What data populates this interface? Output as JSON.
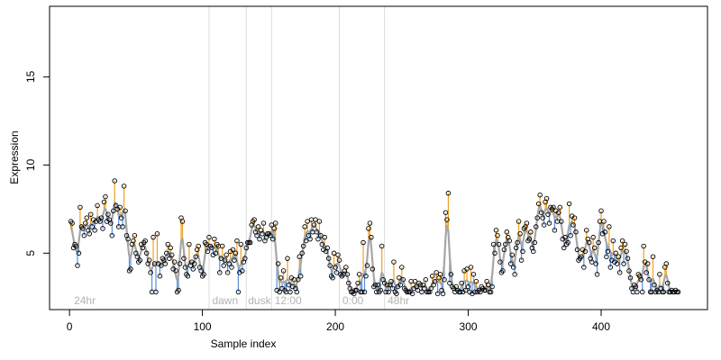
{
  "chart_data": {
    "type": "scatter",
    "title": "",
    "xlabel": "Sample index",
    "ylabel": "Expression",
    "xlim": [
      -15,
      480
    ],
    "ylim": [
      1.8,
      19
    ],
    "xticks": [
      0,
      100,
      200,
      300,
      400
    ],
    "yticks": [
      5,
      10,
      15
    ],
    "grid": false,
    "vlines": [
      105,
      133,
      152,
      203,
      237
    ],
    "region_labels": [
      {
        "text": "24hr",
        "x": 2
      },
      {
        "text": "dawn",
        "x": 106
      },
      {
        "text": "dusk",
        "x": 133
      },
      {
        "text": "12:00",
        "x": 153
      },
      {
        "text": "0:00",
        "x": 204
      },
      {
        "text": "48hr",
        "x": 238
      }
    ],
    "series": [
      {
        "kind": "observed-points",
        "x_start": 1,
        "values": [
          6.8,
          6.7,
          5.3,
          5.5,
          5.4,
          4.3,
          5.0,
          7.6,
          6.5,
          6.4,
          6.0,
          6.7,
          7.0,
          6.3,
          6.1,
          7.2,
          6.5,
          6.9,
          6.3,
          6.8,
          7.7,
          6.9,
          6.8,
          7.0,
          6.4,
          7.9,
          8.2,
          6.8,
          7.2,
          6.9,
          6.7,
          6.0,
          7.4,
          9.1,
          7.7,
          7.5,
          6.5,
          7.6,
          7.0,
          6.5,
          8.8,
          7.4,
          6.0,
          5.8,
          4.0,
          4.1,
          5.5,
          5.7,
          6.0,
          5.0,
          4.8,
          4.5,
          4.6,
          5.5,
          5.3,
          5.6,
          5.7,
          5.0,
          4.4,
          4.6,
          3.9,
          2.8,
          5.9,
          4.4,
          2.8,
          6.1,
          4.4,
          3.7,
          4.3,
          4.7,
          4.6,
          4.4,
          5.0,
          5.5,
          4.7,
          5.3,
          4.9,
          4.1,
          4.5,
          4.0,
          2.8,
          2.9,
          4.4,
          7.0,
          6.8,
          4.7,
          4.2,
          3.8,
          3.7,
          5.5,
          4.3,
          4.5,
          4.1,
          4.4,
          4.8,
          5.2,
          5.4,
          4.2,
          4.0,
          3.7,
          3.8,
          5.6,
          5.5,
          5.1,
          5.9,
          5.4,
          5.3,
          4.9,
          5.8,
          5.0,
          5.5,
          5.4,
          3.9,
          4.7,
          5.4,
          4.3,
          4.6,
          4.9,
          3.9,
          4.4,
          5.1,
          4.2,
          5.2,
          4.6,
          5.0,
          5.7,
          2.8,
          3.9,
          5.5,
          4.0,
          4.5,
          4.7,
          5.3,
          5.6,
          5.6,
          5.6,
          6.6,
          6.8,
          6.9,
          6.2,
          6.0,
          6.5,
          5.8,
          6.3,
          6.1,
          6.7,
          5.7,
          5.9,
          6.1,
          6.1,
          6.0,
          6.6,
          5.8,
          6.4,
          6.7,
          2.9,
          4.4,
          2.8,
          3.6,
          3.0,
          4.0,
          2.9,
          2.8,
          4.7,
          3.2,
          2.8,
          3.6,
          3.1,
          3.5,
          3.0,
          2.8,
          3.5,
          4.8,
          3.7,
          5.0,
          5.4,
          6.5,
          5.7,
          6.8,
          6.0,
          5.8,
          6.9,
          6.2,
          6.6,
          6.9,
          6.2,
          5.8,
          6.8,
          6.0,
          5.5,
          5.2,
          5.9,
          5.1,
          5.3,
          4.7,
          4.3,
          3.7,
          3.6,
          5.0,
          4.2,
          3.9,
          4.9,
          4.6,
          3.8,
          3.7,
          3.8,
          4.0,
          4.2,
          3.8,
          3.3,
          3.0,
          2.8,
          2.8,
          2.7,
          2.9,
          2.9,
          3.3,
          3.8,
          2.8,
          2.8,
          5.6,
          2.8,
          3.7,
          4.3,
          6.4,
          6.7,
          5.9,
          4.1,
          3.1,
          3.2,
          2.8,
          3.2,
          2.8,
          2.9,
          5.4,
          3.5,
          3.3,
          2.8,
          3.2,
          2.8,
          3.2,
          3.4,
          3.0,
          4.5,
          2.8,
          2.7,
          3.1,
          3.6,
          3.2,
          4.2,
          3.5,
          3.0,
          2.9,
          2.8,
          2.8,
          2.8,
          3.4,
          2.7,
          3.0,
          3.4,
          3.1,
          2.9,
          3.3,
          3.2,
          2.8,
          3.2,
          3.0,
          3.5,
          2.8,
          2.8,
          2.8,
          3.0,
          3.7,
          3.2,
          3.4,
          3.9,
          2.7,
          3.6,
          3.8,
          2.9,
          2.7,
          3.5,
          7.3,
          6.9,
          8.4,
          3.3,
          3.8,
          3.1,
          3.0,
          2.8,
          3.1,
          2.9,
          2.8,
          2.8,
          3.3,
          2.8,
          4.0,
          2.9,
          4.1,
          3.1,
          2.8,
          4.2,
          2.7,
          3.8,
          2.8,
          3.4,
          2.8,
          2.9,
          2.8,
          3.1,
          3.0,
          2.9,
          2.9,
          3.4,
          3.2,
          2.8,
          2.8,
          3.1,
          5.5,
          5.0,
          6.3,
          6.0,
          5.5,
          4.5,
          3.9,
          4.0,
          5.2,
          5.5,
          6.2,
          5.9,
          5.7,
          4.4,
          4.9,
          4.2,
          3.8,
          5.3,
          5.6,
          6.8,
          6.1,
          4.6,
          5.1,
          6.4,
          6.5,
          6.7,
          5.7,
          5.8,
          6.2,
          5.3,
          5.1,
          5.6,
          6.5,
          7.0,
          7.8,
          8.3,
          7.3,
          7.0,
          6.6,
          7.9,
          8.1,
          7.2,
          6.7,
          7.6,
          7.5,
          7.6,
          6.3,
          7.4,
          6.8,
          7.3,
          7.6,
          6.8,
          5.8,
          5.3,
          5.9,
          5.5,
          5.6,
          7.8,
          6.0,
          7.1,
          6.6,
          7.0,
          6.2,
          5.2,
          4.6,
          4.7,
          4.8,
          5.2,
          4.2,
          5.1,
          6.3,
          5.8,
          5.6,
          4.7,
          4.5,
          5.9,
          5.3,
          4.4,
          3.8,
          5.6,
          6.8,
          7.4,
          6.1,
          6.8,
          6.2,
          4.8,
          5.1,
          6.5,
          4.2,
          4.6,
          5.7,
          4.5,
          5.0,
          4.4,
          4.8,
          3.9,
          5.3,
          5.7,
          4.4,
          5.5,
          5.1,
          4.7,
          4.0,
          3.6,
          3.0,
          2.8,
          3.2,
          3.1,
          2.8,
          3.8,
          3.7,
          3.5,
          2.8,
          5.4,
          4.5,
          3.9,
          4.4,
          3.5,
          2.8,
          2.8,
          4.8,
          3.2,
          2.8,
          2.9,
          2.8,
          3.8,
          3.0,
          2.8,
          2.8,
          4.2,
          4.4,
          3.3,
          2.8,
          2.8,
          2.9,
          2.8,
          2.8,
          2.9,
          2.8,
          2.8
        ]
      },
      {
        "kind": "fitted-line",
        "color": "#a6a6a6",
        "note_colors": {
          "above": "#f0a020",
          "below": "#5a8fd8"
        }
      }
    ]
  }
}
